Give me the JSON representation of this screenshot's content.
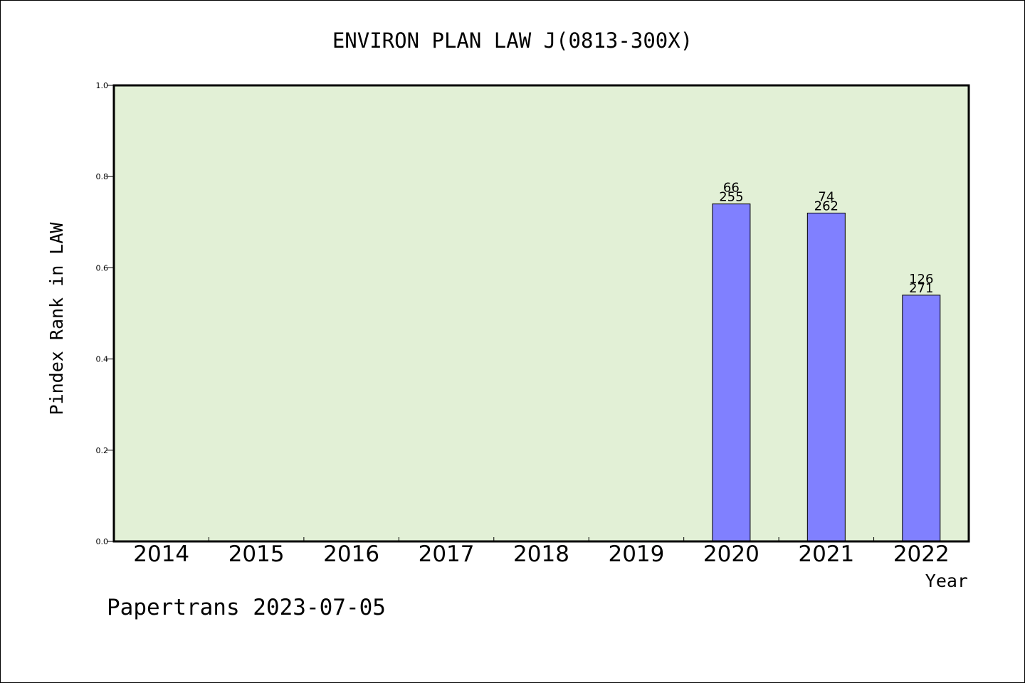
{
  "colors": {
    "plot_bg": "#e2f0d6",
    "bar_fill": "#8080ff",
    "bar_stroke": "#000000",
    "axis": "#000000"
  },
  "footer_text": "Papertrans 2023-07-05",
  "chart_data": {
    "type": "bar",
    "title": "ENVIRON PLAN LAW J(0813-300X)",
    "xlabel": "Year",
    "ylabel": "Pindex Rank in LAW",
    "ylim": [
      0,
      1.0
    ],
    "yticks": [
      "0.0",
      "0.2",
      "0.4",
      "0.6",
      "0.8",
      "1.0"
    ],
    "grid": false,
    "categories": [
      "2014",
      "2015",
      "2016",
      "2017",
      "2018",
      "2019",
      "2020",
      "2021",
      "2022"
    ],
    "values": [
      null,
      null,
      null,
      null,
      null,
      null,
      0.74,
      0.72,
      0.54
    ],
    "label_top": [
      null,
      null,
      null,
      null,
      null,
      null,
      "66",
      "74",
      "126"
    ],
    "label_bottom": [
      null,
      null,
      null,
      null,
      null,
      null,
      "255",
      "262",
      "271"
    ]
  }
}
